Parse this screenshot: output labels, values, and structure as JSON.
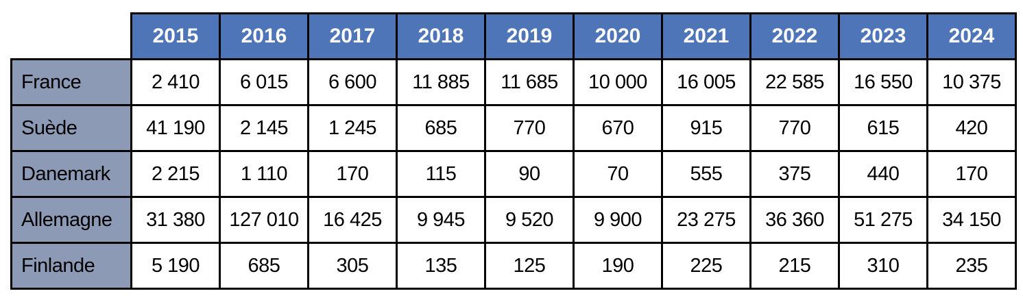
{
  "chart_data": {
    "type": "table",
    "title": "",
    "columns": [
      "2015",
      "2016",
      "2017",
      "2018",
      "2019",
      "2020",
      "2021",
      "2022",
      "2023",
      "2024"
    ],
    "rows": [
      {
        "label": "France",
        "values": [
          "2 410",
          "6 015",
          "6 600",
          "11 885",
          "11 685",
          "10 000",
          "16 005",
          "22 585",
          "16 550",
          "10 375"
        ]
      },
      {
        "label": "Suède",
        "values": [
          "41 190",
          "2 145",
          "1 245",
          "685",
          "770",
          "670",
          "915",
          "770",
          "615",
          "420"
        ]
      },
      {
        "label": "Danemark",
        "values": [
          "2 215",
          "1 110",
          "170",
          "115",
          "90",
          "70",
          "555",
          "375",
          "440",
          "170"
        ]
      },
      {
        "label": "Allemagne",
        "values": [
          "31 380",
          "127 010",
          "16 425",
          "9 945",
          "9 520",
          "9 900",
          "23 275",
          "36 360",
          "51 275",
          "34 150"
        ]
      },
      {
        "label": "Finlande",
        "values": [
          "5 190",
          "685",
          "305",
          "135",
          "125",
          "190",
          "225",
          "215",
          "310",
          "235"
        ]
      }
    ],
    "layout": {
      "legend": "none",
      "grid": "full black gridlines",
      "corner_cell_empty": true
    }
  },
  "colors": {
    "header_bg": "#4D75B8",
    "header_text": "#FFFFFF",
    "label_bg": "#8D9AB5",
    "body_text": "#000000",
    "border": "#000000"
  }
}
